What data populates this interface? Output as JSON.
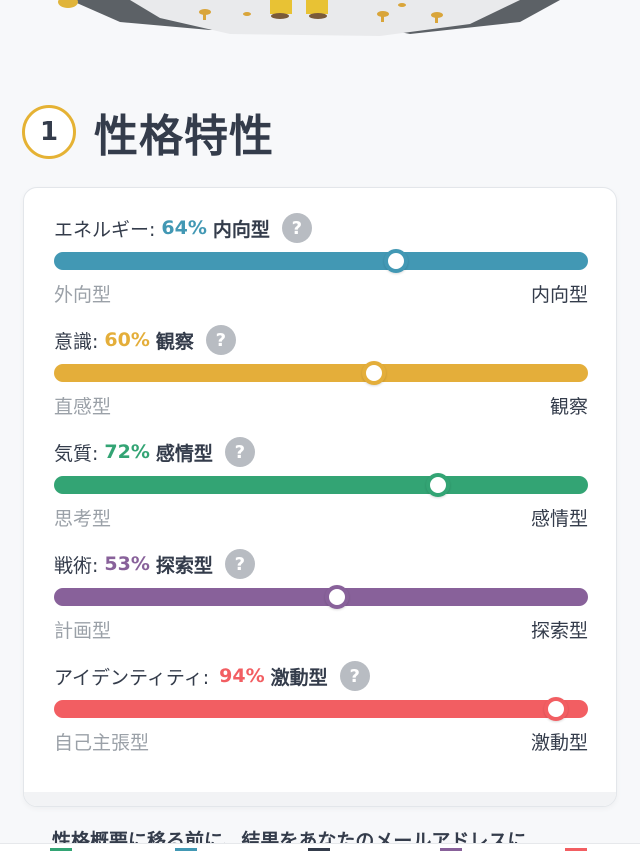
{
  "section": {
    "number": "1",
    "title": "性格特性"
  },
  "traits": [
    {
      "label": "エネルギー:",
      "percent": "64%",
      "type": "内向型",
      "value": 64,
      "left": "外向型",
      "right": "内向型",
      "color": "#4298b4"
    },
    {
      "label": "意識:",
      "percent": "60%",
      "type": "観察",
      "value": 60,
      "left": "直感型",
      "right": "観察",
      "color": "#e4ae3a"
    },
    {
      "label": "気質:",
      "percent": "72%",
      "type": "感情型",
      "value": 72,
      "left": "思考型",
      "right": "感情型",
      "color": "#33a474"
    },
    {
      "label": "戦術:",
      "percent": "53%",
      "type": "探索型",
      "value": 53,
      "left": "計画型",
      "right": "探索型",
      "color": "#88619a"
    },
    {
      "label": "アイデンティティ:",
      "percent": "94%",
      "type": "激動型",
      "value": 94,
      "left": "自己主張型",
      "right": "激動型",
      "color": "#f25e62"
    }
  ],
  "help_symbol": "?",
  "notice": "性格概要に移る前に、結果をあなたのメールアドレスに"
}
